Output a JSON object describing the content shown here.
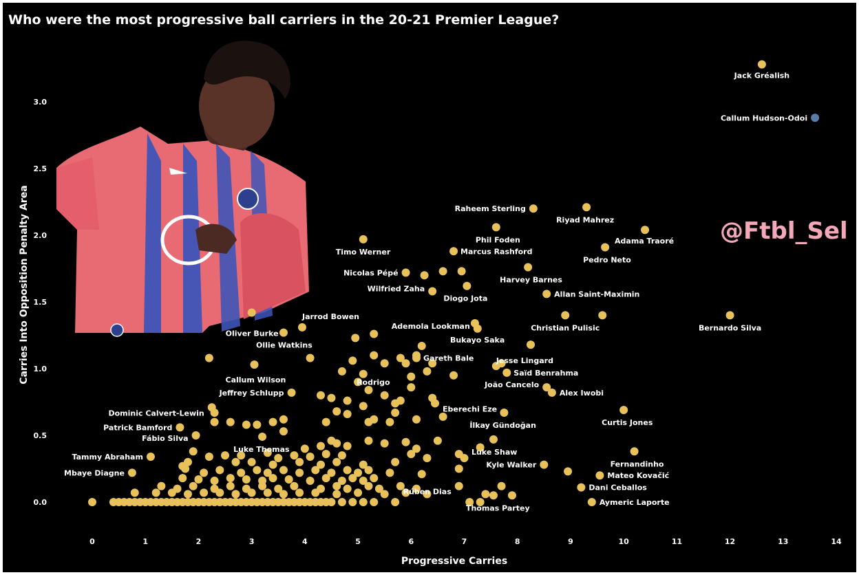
{
  "colors": {
    "background": "#000000",
    "point": "#E8C15A",
    "highlight": "#5B7BA8",
    "text": "#ffffff",
    "handle": "#F4A7B9"
  },
  "watermark": "@Ftbl_Sel",
  "chart_data": {
    "type": "scatter",
    "title": "Who were the most progressive ball carriers in the 20-21 Premier League?",
    "xlabel": "Progressive Carries",
    "ylabel": "Carries Into Opposition Penalty Area",
    "xlim": [
      0,
      14
    ],
    "ylim": [
      0,
      3.3
    ],
    "xticks": [
      "0",
      "1",
      "2",
      "3",
      "4",
      "5",
      "6",
      "7",
      "8",
      "9",
      "10",
      "11",
      "12",
      "13",
      "14"
    ],
    "yticks": [
      "0.0",
      "0.5",
      "1.0",
      "1.5",
      "2.0",
      "2.5",
      "3.0"
    ],
    "grid": false,
    "labeled_points": [
      {
        "name": "Jack Gréalish",
        "x": 12.6,
        "y": 3.28
      },
      {
        "name": "Callum Hudson-Odoi",
        "x": 13.6,
        "y": 2.88,
        "highlight": true
      },
      {
        "name": "Raheem Sterling",
        "x": 8.3,
        "y": 2.2
      },
      {
        "name": "Riyad Mahrez",
        "x": 9.3,
        "y": 2.21
      },
      {
        "name": "Adama Traoré",
        "x": 10.4,
        "y": 2.04
      },
      {
        "name": "Pedro Neto",
        "x": 9.65,
        "y": 1.91
      },
      {
        "name": "Phil Foden",
        "x": 7.6,
        "y": 2.06
      },
      {
        "name": "Marcus Rashford",
        "x": 6.8,
        "y": 1.88
      },
      {
        "name": "Timo Werner",
        "x": 5.1,
        "y": 1.97
      },
      {
        "name": "Nicolas Pépé",
        "x": 5.9,
        "y": 1.72
      },
      {
        "name": "Wilfried Zaha",
        "x": 6.4,
        "y": 1.58
      },
      {
        "name": "Harvey Barnes",
        "x": 8.2,
        "y": 1.76
      },
      {
        "name": "Diogo Jota",
        "x": 7.05,
        "y": 1.62
      },
      {
        "name": "Allan Saint-Maximin",
        "x": 8.55,
        "y": 1.56
      },
      {
        "name": "Christian Pulisic",
        "x": 8.9,
        "y": 1.4
      },
      {
        "name": "Bernardo Silva",
        "x": 12.0,
        "y": 1.4
      },
      {
        "name": "Oliver Burke",
        "x": 3.0,
        "y": 1.42
      },
      {
        "name": "Jarrod Bowen",
        "x": 3.95,
        "y": 1.31
      },
      {
        "name": "Ademola Lookman",
        "x": 7.25,
        "y": 1.3
      },
      {
        "name": "Ollie Watkins",
        "x": 3.6,
        "y": 1.27
      },
      {
        "name": "Bukayo Saka",
        "x": 8.25,
        "y": 1.18
      },
      {
        "name": "Gareth Bale",
        "x": 6.1,
        "y": 1.08
      },
      {
        "name": "Jesse Lingard",
        "x": 7.6,
        "y": 1.02
      },
      {
        "name": "Callum Wilson",
        "x": 3.05,
        "y": 1.03
      },
      {
        "name": "Saïd Benrahma",
        "x": 7.8,
        "y": 0.97
      },
      {
        "name": "Rodrigo",
        "x": 5.0,
        "y": 0.9
      },
      {
        "name": "Jeffrey Schlupp",
        "x": 3.75,
        "y": 0.82
      },
      {
        "name": "João Cancelo",
        "x": 8.55,
        "y": 0.86
      },
      {
        "name": "Alex Iwobi",
        "x": 8.65,
        "y": 0.82
      },
      {
        "name": "Eberechi Eze",
        "x": 6.45,
        "y": 0.74
      },
      {
        "name": "Dominic Calvert-Lewin",
        "x": 2.25,
        "y": 0.71
      },
      {
        "name": "Curtis Jones",
        "x": 10.0,
        "y": 0.69
      },
      {
        "name": "İlkay Gündoğan",
        "x": 7.75,
        "y": 0.67
      },
      {
        "name": "Patrick Bamford",
        "x": 1.65,
        "y": 0.56
      },
      {
        "name": "Fábio Silva",
        "x": 1.95,
        "y": 0.5
      },
      {
        "name": "Luke Thomas",
        "x": 3.2,
        "y": 0.49
      },
      {
        "name": "Luke Shaw",
        "x": 7.55,
        "y": 0.47
      },
      {
        "name": "Tammy Abraham",
        "x": 1.1,
        "y": 0.34
      },
      {
        "name": "Fernandinho",
        "x": 10.2,
        "y": 0.38
      },
      {
        "name": "Kyle Walker",
        "x": 8.5,
        "y": 0.28
      },
      {
        "name": "Mbaye Diagne",
        "x": 0.75,
        "y": 0.22
      },
      {
        "name": "Mateo Kovačić",
        "x": 9.55,
        "y": 0.2
      },
      {
        "name": "Dani Ceballos",
        "x": 9.2,
        "y": 0.11
      },
      {
        "name": "Rúben Dias",
        "x": 6.9,
        "y": 0.12
      },
      {
        "name": "Thomas Partey",
        "x": 7.55,
        "y": 0.05
      },
      {
        "name": "Aymeric Laporte",
        "x": 9.4,
        "y": 0.0
      }
    ],
    "other_points": [
      [
        0.0,
        0.0
      ],
      [
        0.4,
        0.0
      ],
      [
        0.5,
        0.0
      ],
      [
        0.6,
        0.0
      ],
      [
        0.7,
        0.0
      ],
      [
        0.8,
        0.0
      ],
      [
        0.9,
        0.0
      ],
      [
        1.0,
        0.0
      ],
      [
        1.1,
        0.0
      ],
      [
        1.2,
        0.0
      ],
      [
        1.3,
        0.0
      ],
      [
        1.4,
        0.0
      ],
      [
        1.5,
        0.0
      ],
      [
        1.6,
        0.0
      ],
      [
        1.7,
        0.0
      ],
      [
        1.8,
        0.0
      ],
      [
        1.9,
        0.0
      ],
      [
        2.0,
        0.0
      ],
      [
        2.1,
        0.0
      ],
      [
        2.2,
        0.0
      ],
      [
        2.3,
        0.0
      ],
      [
        2.4,
        0.0
      ],
      [
        2.5,
        0.0
      ],
      [
        2.6,
        0.0
      ],
      [
        2.7,
        0.0
      ],
      [
        2.8,
        0.0
      ],
      [
        2.9,
        0.0
      ],
      [
        3.0,
        0.0
      ],
      [
        3.1,
        0.0
      ],
      [
        3.2,
        0.0
      ],
      [
        3.3,
        0.0
      ],
      [
        3.4,
        0.0
      ],
      [
        3.5,
        0.0
      ],
      [
        3.6,
        0.0
      ],
      [
        3.7,
        0.0
      ],
      [
        3.8,
        0.0
      ],
      [
        3.9,
        0.0
      ],
      [
        4.0,
        0.0
      ],
      [
        4.1,
        0.0
      ],
      [
        4.2,
        0.0
      ],
      [
        4.3,
        0.0
      ],
      [
        4.4,
        0.0
      ],
      [
        4.5,
        0.0
      ],
      [
        4.7,
        0.0
      ],
      [
        4.9,
        0.0
      ],
      [
        5.1,
        0.0
      ],
      [
        5.3,
        0.0
      ],
      [
        5.7,
        0.0
      ],
      [
        7.1,
        0.0
      ],
      [
        7.3,
        0.0
      ],
      [
        0.8,
        0.07
      ],
      [
        1.2,
        0.07
      ],
      [
        1.5,
        0.07
      ],
      [
        1.8,
        0.06
      ],
      [
        2.1,
        0.07
      ],
      [
        2.4,
        0.07
      ],
      [
        2.7,
        0.06
      ],
      [
        3.0,
        0.07
      ],
      [
        3.3,
        0.07
      ],
      [
        3.6,
        0.06
      ],
      [
        3.9,
        0.07
      ],
      [
        4.2,
        0.07
      ],
      [
        4.6,
        0.06
      ],
      [
        5.0,
        0.07
      ],
      [
        5.5,
        0.06
      ],
      [
        5.9,
        0.07
      ],
      [
        6.3,
        0.06
      ],
      [
        7.4,
        0.06
      ],
      [
        7.9,
        0.05
      ],
      [
        1.3,
        0.12
      ],
      [
        1.6,
        0.1
      ],
      [
        1.9,
        0.12
      ],
      [
        2.3,
        0.1
      ],
      [
        2.6,
        0.12
      ],
      [
        2.9,
        0.1
      ],
      [
        3.2,
        0.12
      ],
      [
        3.5,
        0.1
      ],
      [
        3.8,
        0.12
      ],
      [
        4.3,
        0.1
      ],
      [
        4.6,
        0.12
      ],
      [
        4.8,
        0.1
      ],
      [
        5.2,
        0.12
      ],
      [
        5.4,
        0.1
      ],
      [
        5.8,
        0.12
      ],
      [
        6.1,
        0.1
      ],
      [
        7.7,
        0.12
      ],
      [
        1.7,
        0.18
      ],
      [
        2.0,
        0.17
      ],
      [
        2.3,
        0.16
      ],
      [
        2.6,
        0.18
      ],
      [
        2.9,
        0.17
      ],
      [
        3.2,
        0.16
      ],
      [
        3.4,
        0.18
      ],
      [
        3.7,
        0.17
      ],
      [
        4.1,
        0.16
      ],
      [
        4.4,
        0.18
      ],
      [
        4.7,
        0.16
      ],
      [
        4.9,
        0.18
      ],
      [
        5.1,
        0.16
      ],
      [
        5.3,
        0.18
      ],
      [
        1.75,
        0.25
      ],
      [
        2.1,
        0.22
      ],
      [
        2.4,
        0.24
      ],
      [
        2.8,
        0.22
      ],
      [
        3.1,
        0.24
      ],
      [
        3.3,
        0.22
      ],
      [
        3.6,
        0.24
      ],
      [
        3.9,
        0.22
      ],
      [
        4.2,
        0.24
      ],
      [
        4.5,
        0.22
      ],
      [
        4.8,
        0.24
      ],
      [
        5.0,
        0.22
      ],
      [
        5.2,
        0.24
      ],
      [
        5.6,
        0.22
      ],
      [
        6.2,
        0.21
      ],
      [
        8.95,
        0.23
      ],
      [
        1.7,
        0.27
      ],
      [
        1.8,
        0.3
      ],
      [
        2.7,
        0.3
      ],
      [
        3.0,
        0.3
      ],
      [
        3.4,
        0.28
      ],
      [
        3.9,
        0.3
      ],
      [
        4.3,
        0.28
      ],
      [
        4.6,
        0.3
      ],
      [
        5.1,
        0.28
      ],
      [
        5.7,
        0.3
      ],
      [
        6.9,
        0.25
      ],
      [
        1.9,
        0.38
      ],
      [
        2.2,
        0.34
      ],
      [
        2.5,
        0.35
      ],
      [
        2.8,
        0.35
      ],
      [
        3.3,
        0.37
      ],
      [
        3.5,
        0.33
      ],
      [
        3.8,
        0.35
      ],
      [
        4.1,
        0.34
      ],
      [
        4.4,
        0.36
      ],
      [
        4.7,
        0.35
      ],
      [
        6.0,
        0.36
      ],
      [
        6.3,
        0.33
      ],
      [
        6.9,
        0.36
      ],
      [
        7.0,
        0.33
      ],
      [
        4.0,
        0.4
      ],
      [
        4.3,
        0.42
      ],
      [
        4.6,
        0.44
      ],
      [
        4.5,
        0.46
      ],
      [
        4.8,
        0.42
      ],
      [
        5.2,
        0.46
      ],
      [
        5.5,
        0.44
      ],
      [
        5.9,
        0.45
      ],
      [
        6.1,
        0.4
      ],
      [
        6.5,
        0.46
      ],
      [
        7.3,
        0.41
      ],
      [
        2.3,
        0.67
      ],
      [
        2.3,
        0.6
      ],
      [
        2.6,
        0.6
      ],
      [
        2.9,
        0.58
      ],
      [
        3.1,
        0.58
      ],
      [
        3.4,
        0.6
      ],
      [
        3.6,
        0.53
      ],
      [
        3.6,
        0.62
      ],
      [
        4.4,
        0.6
      ],
      [
        4.6,
        0.68
      ],
      [
        4.8,
        0.66
      ],
      [
        5.2,
        0.6
      ],
      [
        5.3,
        0.62
      ],
      [
        5.6,
        0.6
      ],
      [
        5.7,
        0.67
      ],
      [
        6.1,
        0.62
      ],
      [
        6.6,
        0.64
      ],
      [
        4.3,
        0.8
      ],
      [
        4.5,
        0.78
      ],
      [
        4.8,
        0.76
      ],
      [
        5.1,
        0.72
      ],
      [
        5.2,
        0.84
      ],
      [
        5.5,
        0.8
      ],
      [
        5.8,
        0.76
      ],
      [
        6.0,
        0.86
      ],
      [
        6.4,
        0.78
      ],
      [
        5.7,
        0.74
      ],
      [
        2.2,
        1.08
      ],
      [
        4.1,
        1.08
      ],
      [
        4.7,
        0.98
      ],
      [
        4.9,
        1.06
      ],
      [
        5.1,
        0.96
      ],
      [
        5.3,
        1.1
      ],
      [
        5.5,
        1.04
      ],
      [
        5.9,
        1.04
      ],
      [
        6.0,
        0.94
      ],
      [
        6.1,
        1.1
      ],
      [
        6.3,
        0.98
      ],
      [
        6.4,
        1.04
      ],
      [
        6.8,
        0.95
      ],
      [
        5.8,
        1.08
      ],
      [
        4.95,
        1.23
      ],
      [
        5.3,
        1.26
      ],
      [
        6.2,
        1.17
      ],
      [
        7.7,
        1.04
      ],
      [
        9.6,
        1.4
      ],
      [
        6.6,
        1.73
      ],
      [
        6.95,
        1.73
      ],
      [
        6.25,
        1.7
      ],
      [
        7.2,
        1.34
      ]
    ]
  }
}
